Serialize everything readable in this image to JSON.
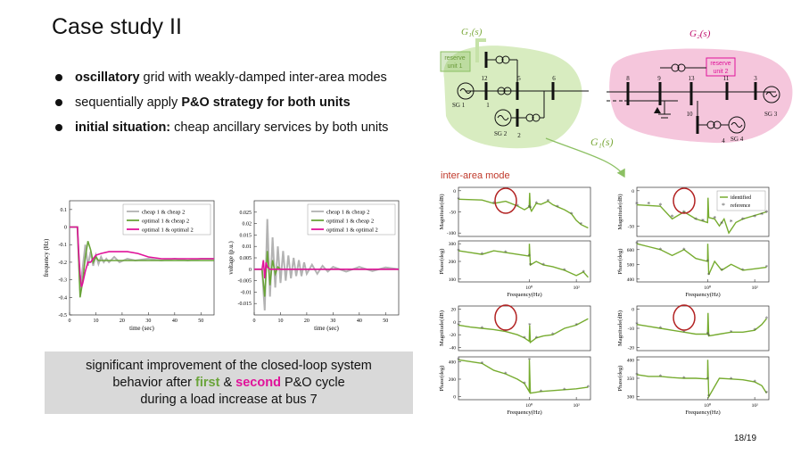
{
  "title": "Case study II",
  "bullets": [
    {
      "bold": "oscillatory",
      "rest": " grid with weakly-damped inter-area modes"
    },
    {
      "pre": "sequentially apply ",
      "bold": "P&O strategy for both units"
    },
    {
      "bold": "initial situation:",
      "rest": " cheap ancillary services by both units"
    }
  ],
  "summary": {
    "line1": "significant improvement of the closed-loop system",
    "line2a": "behavior after ",
    "first": "first",
    "amp": " & ",
    "second": "second",
    "line2b": " P&O cycle",
    "line3": "during a load increase at bus 7"
  },
  "page_number": "18/19",
  "diagram": {
    "g1_label": "G₁(s)",
    "g2_label": "G₂(s)",
    "g1_arrow_label": "G₁(s)",
    "reserve1": [
      "reserve",
      "unit 1"
    ],
    "reserve2": [
      "reserve",
      "unit 2"
    ],
    "buses": [
      "12",
      "5",
      "6",
      "1",
      "2",
      "8",
      "9",
      "13",
      "11",
      "3",
      "10",
      "4"
    ],
    "generators": [
      "SG 1",
      "SG 2",
      "SG 3",
      "SG 4"
    ],
    "colors": {
      "area1": "#d8ecc0",
      "area2": "#f5c6dc",
      "reserve": "#e0139a",
      "arrow": "#8cc063",
      "reserve_box1": "#8cc063"
    }
  },
  "inter_area_label": "inter-area mode",
  "colors": {
    "grey": "#b3b3b3",
    "green": "#6aa43a",
    "magenta": "#e0139a",
    "circle": "#b22222",
    "bode_green": "#77ac30"
  },
  "chart_data": [
    {
      "type": "line",
      "ylabel": "frequency (Hz)",
      "xlabel": "time (sec)",
      "xlim": [
        0,
        55
      ],
      "ylim": [
        -0.5,
        0.15
      ],
      "xticks": [
        "0",
        "10",
        "20",
        "30",
        "40",
        "50"
      ],
      "yticks": [
        "0.1",
        "0",
        "-0.1",
        "-0.2",
        "-0.3",
        "-0.4",
        "-0.5"
      ],
      "legend": "top-right",
      "series": [
        {
          "name": "cheap 1 & cheap 2",
          "x": [
            0,
            3,
            4,
            6,
            7,
            8,
            9,
            10,
            11,
            12,
            13,
            14,
            15,
            17,
            19,
            22,
            25,
            30,
            35,
            40,
            45,
            50,
            55
          ],
          "y": [
            0,
            0,
            -0.36,
            -0.1,
            -0.22,
            -0.14,
            -0.22,
            -0.16,
            -0.21,
            -0.17,
            -0.2,
            -0.18,
            -0.2,
            -0.17,
            -0.2,
            -0.18,
            -0.19,
            -0.18,
            -0.19,
            -0.18,
            -0.19,
            -0.18,
            -0.18
          ]
        },
        {
          "name": "optimal 1 & cheap 2",
          "x": [
            0,
            3,
            4,
            5,
            6,
            7,
            8,
            9,
            10,
            11,
            12,
            14,
            16,
            20,
            25,
            30,
            40,
            50,
            55
          ],
          "y": [
            0,
            0,
            -0.4,
            -0.31,
            -0.17,
            -0.08,
            -0.13,
            -0.2,
            -0.17,
            -0.19,
            -0.19,
            -0.19,
            -0.19,
            -0.19,
            -0.19,
            -0.19,
            -0.19,
            -0.19,
            -0.19
          ]
        },
        {
          "name": "optimal 1 & optimal 2",
          "x": [
            0,
            3,
            3.5,
            4,
            4.5,
            5,
            6,
            7,
            8,
            9,
            10,
            12,
            15,
            18,
            22,
            26,
            30,
            35,
            40,
            45,
            50,
            55
          ],
          "y": [
            0,
            0,
            -0.15,
            -0.27,
            -0.34,
            -0.32,
            -0.25,
            -0.2,
            -0.2,
            -0.18,
            -0.16,
            -0.15,
            -0.14,
            -0.14,
            -0.14,
            -0.15,
            -0.17,
            -0.18,
            -0.18,
            -0.18,
            -0.18,
            -0.18
          ]
        }
      ]
    },
    {
      "type": "line",
      "ylabel": "voltage (p.u.)",
      "xlabel": "time (sec)",
      "xlim": [
        0,
        55
      ],
      "ylim": [
        -0.02,
        0.03
      ],
      "xticks": [
        "0",
        "10",
        "20",
        "30",
        "40",
        "50"
      ],
      "yticks": [
        "0.025",
        "0.02",
        "0.015",
        "0.01",
        "0.005",
        "0",
        "-0.005",
        "-0.01",
        "-0.015"
      ],
      "legend": "top-right",
      "series": [
        {
          "name": "cheap 1 & cheap 2",
          "x": [
            0,
            3,
            4,
            5,
            6,
            7,
            8,
            9,
            10,
            11,
            12,
            13,
            14,
            15,
            16,
            17,
            18,
            19,
            20,
            22,
            24,
            26,
            28,
            30,
            35,
            40,
            45,
            50,
            55
          ],
          "y": [
            0,
            0,
            -0.018,
            0.022,
            -0.012,
            0.014,
            -0.008,
            0.01,
            -0.006,
            0.008,
            -0.005,
            0.006,
            -0.004,
            0.005,
            -0.003,
            0.004,
            -0.003,
            0.003,
            -0.002,
            0.002,
            -0.002,
            0.0015,
            -0.001,
            0.001,
            -0.001,
            0.001,
            -0.0008,
            0.0008,
            0
          ]
        },
        {
          "name": "optimal 1 & cheap 2",
          "x": [
            0,
            3,
            4,
            5,
            6,
            7,
            8,
            9,
            10,
            12,
            14,
            16,
            20,
            30,
            40,
            55
          ],
          "y": [
            0,
            0,
            -0.012,
            0.008,
            -0.007,
            0.004,
            -0.002,
            0.001,
            0,
            0,
            0,
            0,
            0,
            0,
            0,
            0
          ]
        },
        {
          "name": "optimal 1 & optimal 2",
          "x": [
            0,
            3,
            3.5,
            4,
            4.5,
            5,
            6,
            8,
            10,
            20,
            30,
            40,
            55
          ],
          "y": [
            0,
            0,
            0.004,
            -0.004,
            0.003,
            0.001,
            0,
            0,
            0,
            0,
            0,
            0,
            0
          ]
        }
      ]
    },
    {
      "type": "line",
      "title": "",
      "ylabel": "Magnitude(dB)",
      "yticks": [
        "0",
        "-50",
        "-100"
      ],
      "xlabel": "",
      "legend": "none",
      "series": [
        {
          "name": "",
          "x": [
            -3,
            -2,
            -1.5,
            -1,
            -0.5,
            -0.2,
            0,
            0.02,
            0.05,
            0.1,
            0.3,
            0.5,
            0.8,
            1.0,
            1.2,
            1.5,
            1.8,
            2,
            2.2,
            2.5
          ],
          "y": [
            -20,
            -22,
            -30,
            -25,
            -36,
            -45,
            -38,
            -5,
            -42,
            -48,
            -30,
            -32,
            -25,
            -33,
            -38,
            -45,
            -55,
            -70,
            -80,
            -88
          ]
        }
      ]
    },
    {
      "type": "line",
      "ylabel": "Phase(deg)",
      "yticks": [
        "300",
        "200",
        "100"
      ],
      "xlabel": "Frequency(Hz)",
      "xticks": [
        "10⁰",
        "10²"
      ],
      "series": [
        {
          "name": "",
          "x": [
            -3,
            -2.5,
            -2,
            -1.5,
            -1,
            -0.5,
            0,
            0.01,
            0.05,
            0.3,
            0.6,
            1,
            1.5,
            2,
            2.3,
            2.5
          ],
          "y": [
            260,
            250,
            240,
            260,
            250,
            240,
            230,
            300,
            180,
            200,
            180,
            170,
            150,
            120,
            140,
            110
          ]
        }
      ]
    },
    {
      "type": "line",
      "ylabel": "Magnitude(dB)",
      "yticks": [
        "0",
        "-50"
      ],
      "legend": "top-right",
      "series": [
        {
          "name": "identified",
          "x": [
            -3,
            -2,
            -1.5,
            -1,
            -0.5,
            0,
            0.02,
            0.05,
            0.3,
            0.5,
            0.7,
            0.9,
            1.2,
            1.5,
            2,
            2.5
          ],
          "y": [
            -20,
            -22,
            -40,
            -30,
            -40,
            -45,
            -10,
            -38,
            -40,
            -50,
            -40,
            -60,
            -45,
            -40,
            -35,
            -30
          ]
        },
        {
          "name": "reference",
          "x": [
            -3,
            -2.5,
            -2,
            -1.5,
            -1,
            -0.5,
            -0.2,
            0.3,
            0.6,
            1,
            1.5,
            2,
            2.3,
            2.5
          ],
          "y": [
            -20,
            -20,
            -22,
            -38,
            -32,
            -42,
            -44,
            -40,
            -48,
            -45,
            -42,
            -38,
            -35,
            -32
          ]
        }
      ]
    },
    {
      "type": "line",
      "ylabel": "Phase(deg)",
      "yticks": [
        "600",
        "500",
        "400"
      ],
      "xlabel": "Frequency(Hz)",
      "xticks": [
        "10⁰",
        "10²"
      ],
      "series": [
        {
          "name": "",
          "x": [
            -3,
            -2.5,
            -2,
            -1.5,
            -1,
            -0.5,
            0,
            0.01,
            0.05,
            0.3,
            0.6,
            1,
            1.5,
            2,
            2.5
          ],
          "y": [
            640,
            620,
            600,
            560,
            600,
            540,
            520,
            640,
            430,
            520,
            460,
            500,
            460,
            470,
            480
          ]
        }
      ]
    },
    {
      "type": "line",
      "ylabel": "Magnitude(dB)",
      "yticks": [
        "20",
        "0",
        "-20",
        "-40"
      ],
      "series": [
        {
          "name": "",
          "x": [
            -3,
            -2.5,
            -2,
            -1.5,
            -1,
            -0.5,
            -0.2,
            0,
            0.02,
            0.05,
            0.3,
            0.6,
            1,
            1.5,
            2,
            2.5
          ],
          "y": [
            -5,
            -8,
            -10,
            -12,
            -15,
            -20,
            -25,
            -30,
            -5,
            -32,
            -25,
            -22,
            -20,
            -10,
            -5,
            5
          ]
        }
      ]
    },
    {
      "type": "line",
      "ylabel": "Phase(deg)",
      "yticks": [
        "400",
        "200",
        "0"
      ],
      "xlabel": "Frequency(Hz)",
      "xticks": [
        "10⁰",
        "10²"
      ],
      "series": [
        {
          "name": "",
          "x": [
            -3,
            -2.5,
            -2,
            -1.5,
            -1,
            -0.5,
            -0.2,
            0,
            0.01,
            0.05,
            0.5,
            1,
            1.5,
            2,
            2.5
          ],
          "y": [
            420,
            400,
            380,
            300,
            260,
            200,
            150,
            60,
            420,
            40,
            60,
            70,
            80,
            90,
            110
          ]
        }
      ]
    },
    {
      "type": "line",
      "ylabel": "Magnitude(dB)",
      "yticks": [
        "0",
        "-10",
        "-20"
      ],
      "series": [
        {
          "name": "",
          "x": [
            -3,
            -2.5,
            -2,
            -1.5,
            -1,
            -0.5,
            0,
            0.02,
            0.05,
            0.5,
            1,
            1.5,
            2,
            2.3,
            2.5
          ],
          "y": [
            -8,
            -9,
            -10,
            -11,
            -12,
            -13,
            -13,
            -2,
            -14,
            -13,
            -12,
            -12,
            -11,
            -8,
            -5
          ]
        }
      ]
    },
    {
      "type": "line",
      "ylabel": "Phase(deg)",
      "yticks": [
        "400",
        "350",
        "300"
      ],
      "xlabel": "Frequency(Hz)",
      "xticks": [
        "10⁰",
        "10²"
      ],
      "series": [
        {
          "name": "",
          "x": [
            -3,
            -2.5,
            -2,
            -1.5,
            -1,
            -0.5,
            0,
            0.01,
            0.05,
            0.5,
            1,
            1.5,
            2,
            2.3,
            2.5
          ],
          "y": [
            360,
            355,
            355,
            352,
            350,
            350,
            348,
            400,
            300,
            350,
            348,
            346,
            340,
            330,
            310
          ]
        }
      ]
    }
  ]
}
